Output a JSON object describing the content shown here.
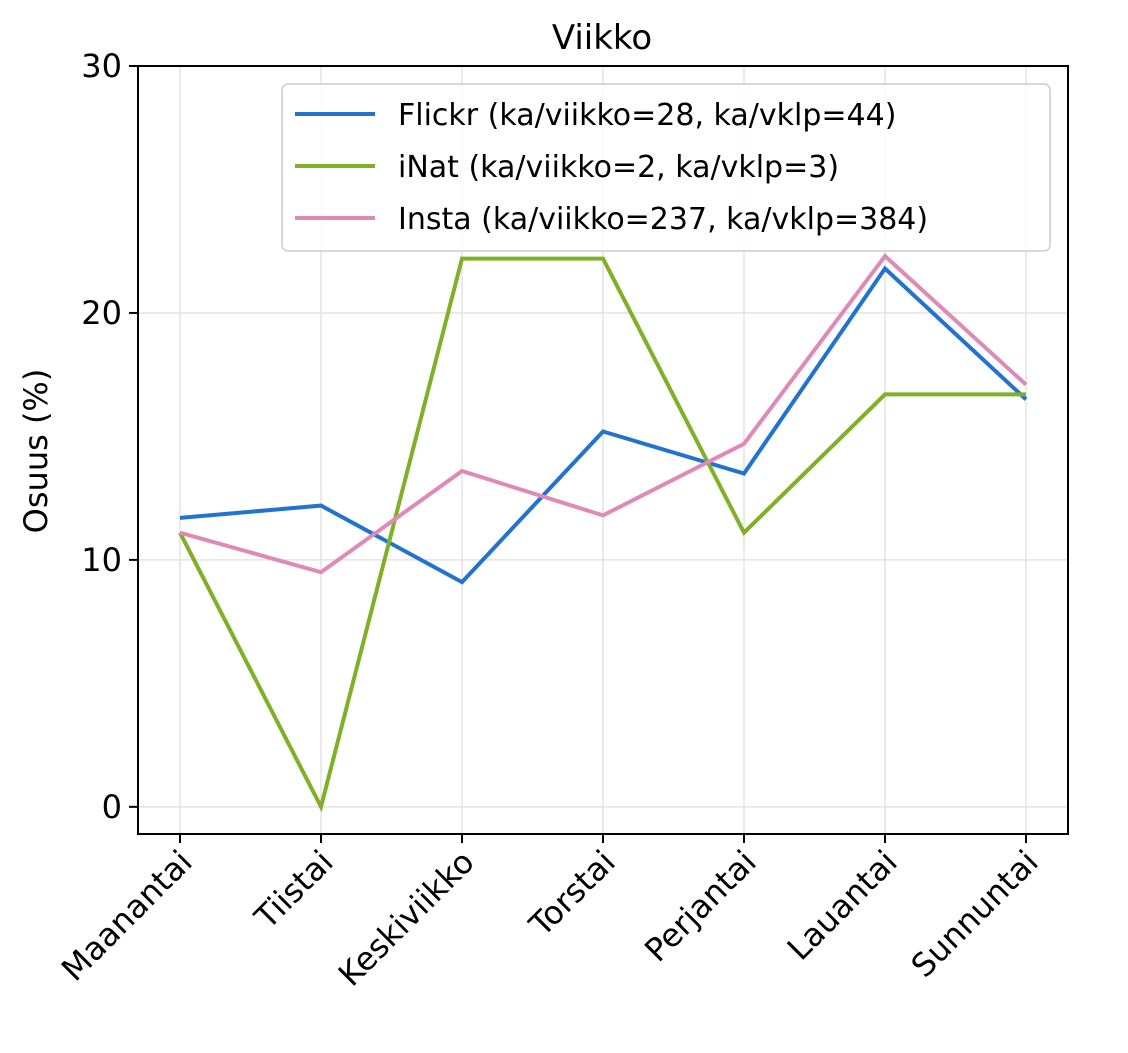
{
  "chart_data": {
    "type": "line",
    "title": "Viikko",
    "xlabel": "",
    "ylabel": "Osuus (%)",
    "ylim": [
      -1.1,
      30
    ],
    "yticks": [
      0,
      10,
      20,
      30
    ],
    "grid": true,
    "legend_position": "top-right",
    "categories": [
      "Maanantai",
      "Tiistai",
      "Keskiviikko",
      "Torstai",
      "Perjantai",
      "Lauantai",
      "Sunnuntai"
    ],
    "series": [
      {
        "name": "Flickr (ka/viikko=28, ka/vklp=44)",
        "color": "#2272d0",
        "values": [
          11.7,
          12.2,
          9.1,
          15.2,
          13.5,
          21.8,
          16.5
        ]
      },
      {
        "name": "iNat (ka/viikko=2, ka/vklp=3)",
        "color": "#7fb025",
        "values": [
          11.1,
          0.0,
          22.2,
          22.2,
          11.1,
          16.7,
          16.7
        ]
      },
      {
        "name": "Insta (ka/viikko=237, ka/vklp=384)",
        "color": "#de8ab8",
        "values": [
          11.1,
          9.5,
          13.6,
          11.8,
          14.7,
          22.3,
          17.1
        ]
      }
    ]
  }
}
